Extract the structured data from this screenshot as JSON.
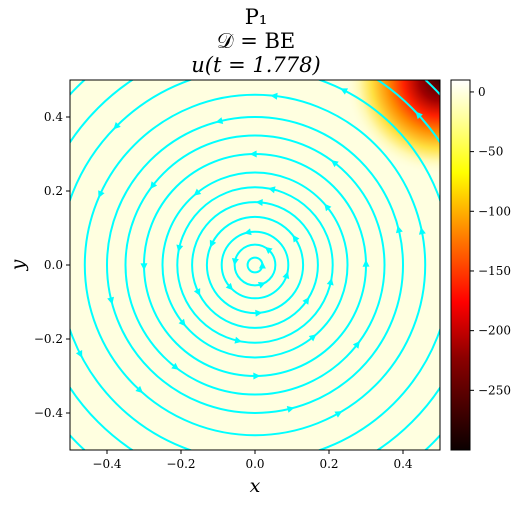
{
  "chart_data": {
    "type": "heatmap",
    "title_lines": [
      "P₁",
      "𝒟 = BE",
      "u(t = 1.778)"
    ],
    "xlabel": "x",
    "ylabel": "y",
    "xlim": [
      -0.5,
      0.5
    ],
    "ylim": [
      -0.5,
      0.5
    ],
    "x_ticks": [
      -0.4,
      -0.2,
      0.0,
      0.2,
      0.4
    ],
    "x_tick_labels": [
      "−0.4",
      "−0.2",
      "0.0",
      "0.2",
      "0.4"
    ],
    "y_ticks": [
      -0.4,
      -0.2,
      0.0,
      0.2,
      0.4
    ],
    "y_tick_labels": [
      "−0.4",
      "−0.2",
      "0.0",
      "0.2",
      "0.4"
    ],
    "colorbar": {
      "colormap": "hot",
      "range": [
        -300,
        10
      ],
      "ticks": [
        0,
        -50,
        -100,
        -150,
        -200,
        -250
      ],
      "tick_labels": [
        "0",
        "−50",
        "−100",
        "−150",
        "−200",
        "−250"
      ]
    },
    "field_description": {
      "background_value": 0,
      "minimum_value": -300,
      "minimum_location": [
        0.5,
        0.5
      ]
    },
    "streamlines": {
      "color": "#00ffff",
      "flow": "counter-clockwise rotation about the origin",
      "radii": [
        0.02,
        0.055,
        0.09,
        0.13,
        0.17,
        0.21,
        0.25,
        0.3,
        0.35,
        0.4,
        0.46,
        0.53,
        0.6,
        0.68
      ]
    },
    "grid": false
  }
}
